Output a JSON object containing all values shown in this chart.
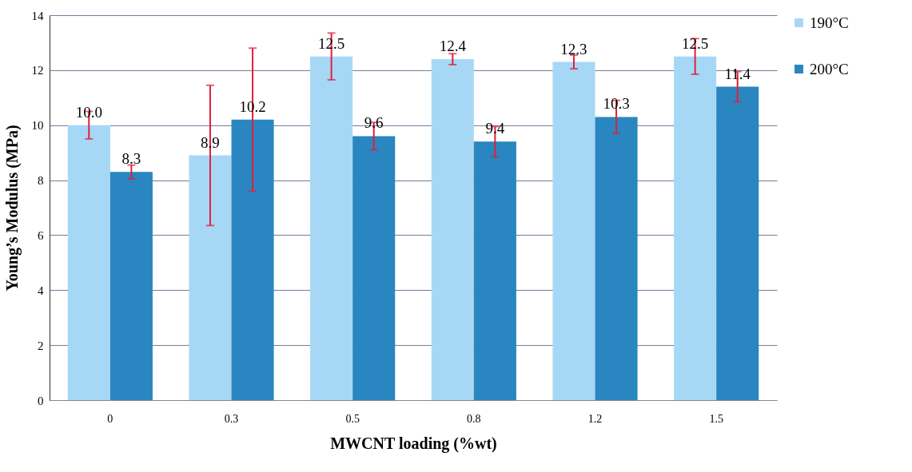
{
  "chart_data": {
    "type": "bar",
    "xlabel": "MWCNT loading (%wt)",
    "ylabel": "Young’s Modulus (MPa)",
    "categories": [
      "0",
      "0.3",
      "0.5",
      "0.8",
      "1.2",
      "1.5"
    ],
    "series": [
      {
        "name": "190°C",
        "color": "#a6d8f5",
        "values": [
          10.0,
          8.9,
          12.5,
          12.4,
          12.3,
          12.5
        ],
        "value_labels": [
          "10.0",
          "8.9",
          "12.5",
          "12.4",
          "12.3",
          "12.5"
        ],
        "errors": [
          0.5,
          2.55,
          0.85,
          0.2,
          0.25,
          0.65
        ]
      },
      {
        "name": "200°C",
        "color": "#2a86c0",
        "values": [
          8.3,
          10.2,
          9.6,
          9.4,
          10.3,
          11.4
        ],
        "value_labels": [
          "8.3",
          "10.2",
          "9.6",
          "9.4",
          "10.3",
          "11.4"
        ],
        "errors": [
          0.25,
          2.6,
          0.5,
          0.55,
          0.6,
          0.55
        ]
      }
    ],
    "ylim": [
      0,
      14
    ],
    "yticks": [
      0,
      2,
      4,
      6,
      8,
      10,
      12,
      14
    ],
    "grid": "y",
    "legend": "right"
  }
}
